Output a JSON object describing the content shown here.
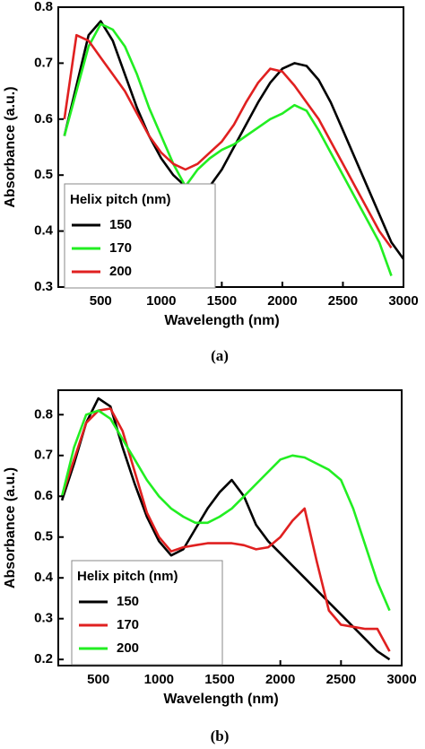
{
  "chart_data": [
    {
      "type": "line",
      "caption": "(a)",
      "xlabel": "Wavelength (nm)",
      "ylabel": "Absorbance (a.u.)",
      "legend_title": "Helix pitch (nm)",
      "legend": "lower left",
      "xlim": [
        150,
        3000
      ],
      "ylim": [
        0.3,
        0.8
      ],
      "xticks": [
        500,
        1000,
        1500,
        2000,
        2500,
        3000
      ],
      "yticks": [
        0.3,
        0.4,
        0.5,
        0.6,
        0.7,
        0.8
      ],
      "x": [
        200,
        300,
        400,
        500,
        600,
        700,
        800,
        900,
        1000,
        1100,
        1200,
        1300,
        1400,
        1500,
        1600,
        1700,
        1800,
        1900,
        2000,
        2100,
        2200,
        2300,
        2400,
        2500,
        2600,
        2700,
        2800,
        2900,
        3000
      ],
      "series": [
        {
          "name": "150",
          "color": "#000000",
          "values": [
            0.57,
            0.66,
            0.75,
            0.775,
            0.74,
            0.68,
            0.62,
            0.57,
            0.53,
            0.5,
            0.48,
            0.475,
            0.48,
            0.51,
            0.55,
            0.59,
            0.63,
            0.665,
            0.69,
            0.7,
            0.695,
            0.67,
            0.63,
            0.58,
            0.53,
            0.48,
            0.43,
            0.38,
            0.35
          ]
        },
        {
          "name": "170",
          "color": "#22ee22",
          "values": [
            0.57,
            0.65,
            0.73,
            0.77,
            0.76,
            0.73,
            0.68,
            0.62,
            0.57,
            0.52,
            0.48,
            0.51,
            0.53,
            0.545,
            0.555,
            0.57,
            0.585,
            0.6,
            0.61,
            0.625,
            0.615,
            0.58,
            0.54,
            0.5,
            0.46,
            0.42,
            0.38,
            0.32,
            null
          ]
        },
        {
          "name": "200",
          "color": "#e02020",
          "values": [
            0.6,
            0.75,
            0.74,
            0.71,
            0.68,
            0.65,
            0.61,
            0.57,
            0.54,
            0.52,
            0.51,
            0.52,
            0.54,
            0.56,
            0.59,
            0.63,
            0.665,
            0.69,
            0.685,
            0.66,
            0.63,
            0.6,
            0.56,
            0.52,
            0.48,
            0.44,
            0.4,
            0.37,
            null
          ]
        }
      ]
    },
    {
      "type": "line",
      "caption": "(b)",
      "xlabel": "Wavelength (nm)",
      "ylabel": "Absorbance (a.u.)",
      "legend_title": "Helix pitch (nm)",
      "legend": "lower left",
      "xlim": [
        170,
        3000
      ],
      "ylim": [
        0.185,
        0.86
      ],
      "xticks": [
        500,
        1000,
        1500,
        2000,
        2500,
        3000
      ],
      "yticks": [
        0.2,
        0.3,
        0.4,
        0.5,
        0.6,
        0.7,
        0.8
      ],
      "x": [
        200,
        300,
        400,
        500,
        600,
        700,
        800,
        900,
        1000,
        1100,
        1200,
        1300,
        1400,
        1500,
        1600,
        1700,
        1800,
        1900,
        2000,
        2100,
        2200,
        2300,
        2400,
        2500,
        2600,
        2700,
        2800,
        2900,
        3000
      ],
      "series": [
        {
          "name": "150",
          "color": "#000000",
          "values": [
            0.59,
            0.68,
            0.78,
            0.84,
            0.82,
            0.72,
            0.63,
            0.55,
            0.49,
            0.455,
            0.47,
            0.52,
            0.57,
            0.61,
            0.64,
            0.6,
            0.53,
            0.49,
            0.46,
            0.43,
            0.4,
            0.37,
            0.34,
            0.31,
            0.28,
            0.25,
            0.22,
            0.2,
            null
          ]
        },
        {
          "name": "170",
          "color": "#e02020",
          "values": [
            0.6,
            0.69,
            0.78,
            0.81,
            0.815,
            0.76,
            0.66,
            0.56,
            0.5,
            0.465,
            0.475,
            0.48,
            0.485,
            0.485,
            0.485,
            0.48,
            0.47,
            0.475,
            0.5,
            0.54,
            0.57,
            0.44,
            0.32,
            0.285,
            0.28,
            0.275,
            0.275,
            0.22,
            null
          ]
        },
        {
          "name": "200",
          "color": "#22ee22",
          "values": [
            0.6,
            0.72,
            0.8,
            0.81,
            0.79,
            0.74,
            0.69,
            0.64,
            0.6,
            0.57,
            0.55,
            0.535,
            0.535,
            0.55,
            0.57,
            0.6,
            0.63,
            0.66,
            0.69,
            0.7,
            0.695,
            0.68,
            0.665,
            0.64,
            0.57,
            0.48,
            0.39,
            0.32,
            null
          ]
        }
      ]
    }
  ]
}
